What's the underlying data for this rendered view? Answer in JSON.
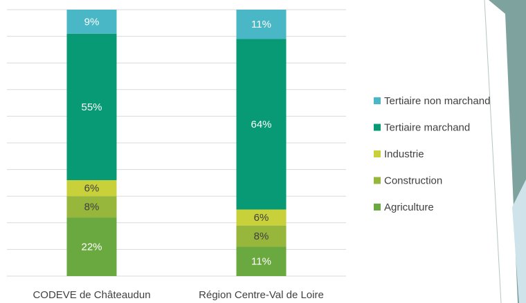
{
  "chart_data": {
    "type": "bar",
    "stacked": true,
    "categories": [
      "CODEVE de Châteaudun",
      "Région Centre-Val de Loire"
    ],
    "series": [
      {
        "name": "Agriculture",
        "color": "#6aa93f",
        "values": [
          22,
          11
        ],
        "value_labels": [
          "22%",
          "11%"
        ]
      },
      {
        "name": "Construction",
        "color": "#96b63c",
        "values": [
          8,
          8
        ],
        "value_labels": [
          "8%",
          "8%"
        ]
      },
      {
        "name": "Industrie",
        "color": "#c8d13a",
        "values": [
          6,
          6
        ],
        "value_labels": [
          "6%",
          "6%"
        ]
      },
      {
        "name": "Tertiaire marchand",
        "color": "#089a74",
        "values": [
          55,
          64
        ],
        "value_labels": [
          "55%",
          "64%"
        ]
      },
      {
        "name": "Tertiaire non marchand",
        "color": "#49b7c6",
        "values": [
          9,
          11
        ],
        "value_labels": [
          "9%",
          "11%"
        ]
      }
    ],
    "ylim": [
      0,
      100
    ],
    "yticks": [
      0,
      10,
      20,
      30,
      40,
      50,
      60,
      70,
      80,
      90,
      100
    ],
    "grid": true
  }
}
